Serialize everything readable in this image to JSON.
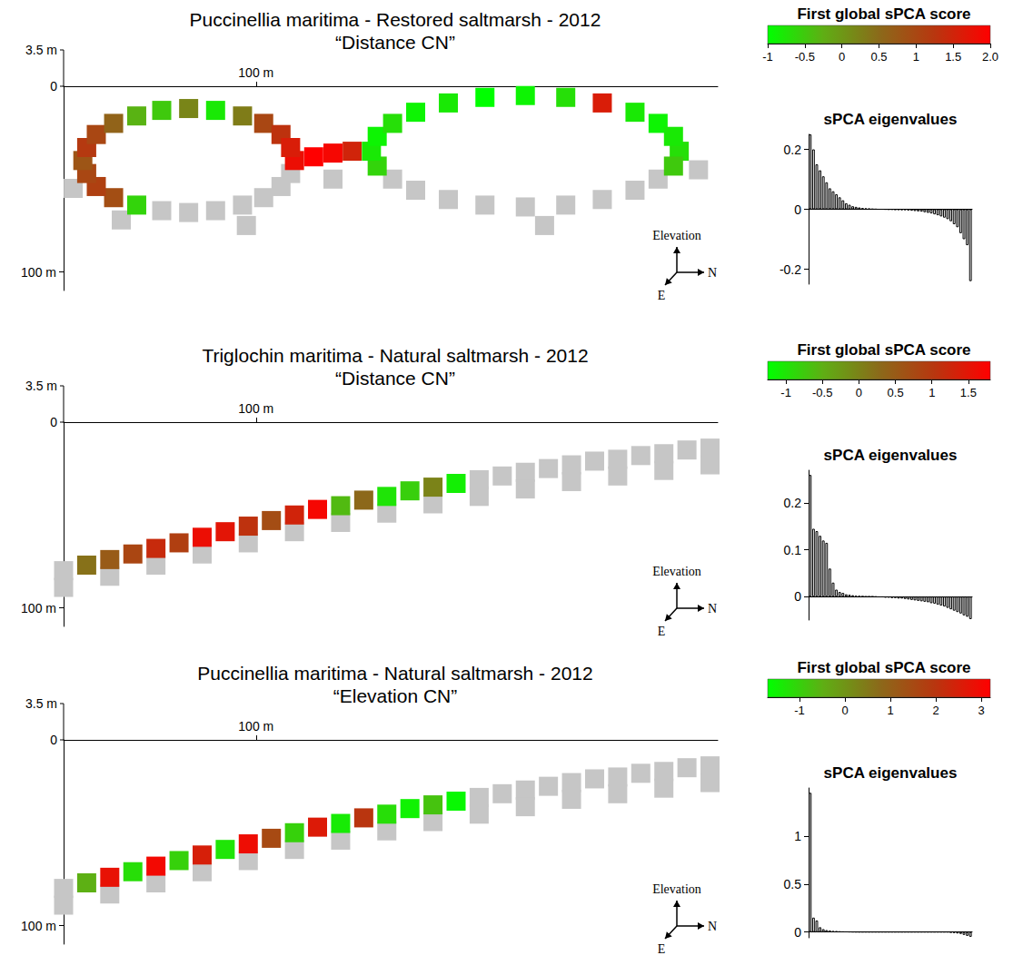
{
  "chart_data": [
    {
      "type": "map",
      "title": "Puccinellia maritima - Restored saltmarsh - 2012",
      "subtitle": "“Distance CN”",
      "map": {
        "xlim": [
          0,
          340
        ],
        "xticks": [
          {
            "value": 100,
            "label": "100 m"
          }
        ],
        "ylim": [
          0,
          110
        ],
        "yticks": [
          {
            "value": 100,
            "label": "100 m"
          }
        ],
        "elevation_lim": [
          0,
          3.5
        ],
        "elevation_ticks": [
          0,
          {
            "value": 3.5,
            "label": "3.5 m"
          }
        ],
        "compass": [
          "Elevation",
          "N",
          "E"
        ],
        "cells": [
          [
            120,
            40,
            1.8
          ],
          [
            118,
            47,
            null
          ],
          [
            113,
            54,
            null
          ],
          [
            104,
            60,
            null
          ],
          [
            93,
            64,
            null
          ],
          [
            79,
            67,
            null
          ],
          [
            65,
            68,
            null
          ],
          [
            51,
            67,
            null
          ],
          [
            38,
            64,
            -0.6
          ],
          [
            26,
            60,
            0.9
          ],
          [
            17,
            54,
            1.1
          ],
          [
            12,
            47,
            1.0
          ],
          [
            10,
            40,
            0.8
          ],
          [
            12,
            33,
            1.2
          ],
          [
            17,
            26,
            1.0
          ],
          [
            26,
            20,
            0.6
          ],
          [
            38,
            16,
            -0.3
          ],
          [
            51,
            13,
            -0.5
          ],
          [
            65,
            12,
            0.2
          ],
          [
            79,
            13,
            -0.8
          ],
          [
            93,
            16,
            0.3
          ],
          [
            104,
            20,
            1.0
          ],
          [
            113,
            26,
            1.3
          ],
          [
            118,
            33,
            1.6
          ],
          [
            130,
            38,
            2.0
          ],
          [
            140,
            36,
            1.9
          ],
          [
            150,
            35,
            1.5
          ],
          [
            320,
            35,
            -0.7
          ],
          [
            317,
            43,
            -0.5
          ],
          [
            309,
            50,
            null
          ],
          [
            297,
            56,
            null
          ],
          [
            280,
            61,
            null
          ],
          [
            261,
            64,
            null
          ],
          [
            240,
            65,
            null
          ],
          [
            219,
            64,
            null
          ],
          [
            200,
            61,
            null
          ],
          [
            183,
            56,
            null
          ],
          [
            171,
            50,
            null
          ],
          [
            163,
            43,
            -0.6
          ],
          [
            160,
            35,
            -0.8
          ],
          [
            163,
            27,
            -0.9
          ],
          [
            171,
            20,
            -0.7
          ],
          [
            183,
            14,
            -0.9
          ],
          [
            200,
            9,
            -0.8
          ],
          [
            219,
            6,
            -1.0
          ],
          [
            240,
            5,
            -0.9
          ],
          [
            261,
            6,
            -0.7
          ],
          [
            280,
            9,
            1.6
          ],
          [
            297,
            14,
            -0.8
          ],
          [
            309,
            20,
            -0.9
          ],
          [
            317,
            27,
            -0.8
          ],
          [
            5,
            55,
            null
          ],
          [
            30,
            72,
            null
          ],
          [
            95,
            75,
            null
          ],
          [
            140,
            50,
            null
          ],
          [
            330,
            45,
            null
          ],
          [
            250,
            75,
            null
          ]
        ]
      },
      "color_bar": {
        "title": "First global sPCA score",
        "range": [
          -1,
          2
        ],
        "ticks": [
          -1,
          -0.5,
          0,
          0.5,
          1,
          1.5,
          {
            "value": 2,
            "label": "2.0"
          }
        ]
      },
      "eigenvalues": {
        "type": "bar",
        "title": "sPCA eigenvalues",
        "color": "#000000",
        "tick_labels": "y",
        "categories": [
          null,
          null,
          null,
          null,
          null,
          null,
          null,
          null,
          null,
          null,
          null,
          null,
          null,
          null,
          null,
          null,
          null,
          null,
          null,
          null,
          null,
          null,
          null,
          null,
          null,
          null,
          null,
          null,
          null,
          null,
          null,
          null,
          null,
          null,
          null,
          null,
          null,
          null,
          null,
          null,
          null,
          null,
          null,
          null,
          null,
          null,
          null,
          null,
          null,
          null
        ],
        "values": [
          0.25,
          0.2,
          0.15,
          0.13,
          0.11,
          0.09,
          0.07,
          0.06,
          0.05,
          0.04,
          0.03,
          0.02,
          0.015,
          0.01,
          0.008,
          0.006,
          0.004,
          0.003,
          0.002,
          0.001,
          0.0005,
          0,
          0,
          -0.0005,
          -0.001,
          -0.001,
          -0.002,
          -0.002,
          -0.003,
          -0.003,
          -0.004,
          -0.005,
          -0.006,
          -0.007,
          -0.008,
          -0.01,
          -0.012,
          -0.014,
          -0.017,
          -0.02,
          -0.024,
          -0.028,
          -0.033,
          -0.04,
          -0.05,
          -0.06,
          -0.08,
          -0.1,
          -0.12,
          -0.24
        ],
        "ylim": [
          -0.25,
          0.25
        ],
        "yticks": [
          -0.2,
          0,
          0.2
        ]
      }
    },
    {
      "type": "map",
      "title": "Triglochin maritima - Natural saltmarsh - 2012",
      "subtitle": "“Distance CN”",
      "map": {
        "xlim": [
          0,
          340
        ],
        "xticks": [
          {
            "value": 100,
            "label": "100 m"
          }
        ],
        "ylim": [
          0,
          110
        ],
        "yticks": [
          {
            "value": 100,
            "label": "100 m"
          }
        ],
        "elevation_lim": [
          0,
          3.5
        ],
        "elevation_ticks": [
          0,
          {
            "value": 3.5,
            "label": "3.5 m"
          }
        ],
        "compass": [
          "Elevation",
          "N",
          "E"
        ],
        "cells": [
          [
            0,
            80,
            null
          ],
          [
            12,
            77,
            0.2
          ],
          [
            24,
            74,
            0.5
          ],
          [
            36,
            71,
            0.8
          ],
          [
            48,
            68,
            1.2
          ],
          [
            60,
            65,
            0.9
          ],
          [
            72,
            62,
            1.6
          ],
          [
            84,
            59,
            1.5
          ],
          [
            96,
            56,
            1.1
          ],
          [
            108,
            53,
            0.7
          ],
          [
            120,
            50,
            1.3
          ],
          [
            132,
            47,
            1.7
          ],
          [
            144,
            45,
            -0.6
          ],
          [
            156,
            42,
            0.3
          ],
          [
            168,
            40,
            -1.0
          ],
          [
            180,
            37,
            -0.8
          ],
          [
            192,
            35,
            0
          ],
          [
            204,
            33,
            -1.1
          ],
          [
            216,
            31,
            null
          ],
          [
            228,
            29,
            null
          ],
          [
            240,
            27,
            null
          ],
          [
            252,
            25,
            null
          ],
          [
            264,
            23,
            null
          ],
          [
            276,
            21,
            null
          ],
          [
            288,
            20,
            null
          ],
          [
            300,
            18,
            null
          ],
          [
            312,
            17,
            null
          ],
          [
            324,
            15,
            null
          ],
          [
            336,
            14,
            null
          ],
          [
            0,
            89,
            null
          ],
          [
            24,
            83,
            null
          ],
          [
            48,
            77,
            null
          ],
          [
            72,
            71,
            null
          ],
          [
            96,
            65,
            null
          ],
          [
            120,
            59,
            null
          ],
          [
            144,
            54,
            null
          ],
          [
            168,
            49,
            null
          ],
          [
            192,
            44,
            null
          ],
          [
            216,
            40,
            null
          ],
          [
            240,
            36,
            null
          ],
          [
            264,
            32,
            null
          ],
          [
            288,
            29,
            null
          ],
          [
            312,
            26,
            null
          ],
          [
            336,
            23,
            null
          ]
        ]
      },
      "color_bar": {
        "title": "First global sPCA score",
        "range": [
          -1.25,
          1.8
        ],
        "ticks": [
          -1,
          -0.5,
          0,
          0.5,
          1,
          1.5
        ]
      },
      "eigenvalues": {
        "type": "bar",
        "title": "sPCA eigenvalues",
        "color": "#000000",
        "tick_labels": "y",
        "categories": [
          null,
          null,
          null,
          null,
          null,
          null,
          null,
          null,
          null,
          null,
          null,
          null,
          null,
          null,
          null,
          null,
          null,
          null,
          null,
          null,
          null,
          null,
          null,
          null,
          null,
          null,
          null,
          null,
          null,
          null,
          null,
          null,
          null,
          null,
          null,
          null,
          null,
          null,
          null,
          null,
          null,
          null,
          null,
          null,
          null,
          null,
          null,
          null,
          null,
          null
        ],
        "values": [
          0.26,
          0.145,
          0.14,
          0.13,
          0.12,
          0.115,
          0.06,
          0.03,
          0.015,
          0.01,
          0.008,
          0.005,
          0.004,
          0.003,
          0.002,
          0.001,
          0.0005,
          0,
          0,
          0,
          -0.0005,
          -0.001,
          -0.001,
          -0.002,
          -0.002,
          -0.003,
          -0.003,
          -0.004,
          -0.004,
          -0.005,
          -0.006,
          -0.007,
          -0.008,
          -0.009,
          -0.01,
          -0.011,
          -0.012,
          -0.014,
          -0.015,
          -0.017,
          -0.019,
          -0.021,
          -0.024,
          -0.027,
          -0.03,
          -0.033,
          -0.036,
          -0.04,
          -0.043,
          -0.048
        ],
        "ylim": [
          -0.05,
          0.27
        ],
        "yticks": [
          0,
          0.1,
          0.2
        ]
      }
    },
    {
      "type": "map",
      "title": "Puccinellia maritima - Natural saltmarsh - 2012",
      "subtitle": "“Elevation CN”",
      "map": {
        "xlim": [
          0,
          340
        ],
        "xticks": [
          {
            "value": 100,
            "label": "100 m"
          }
        ],
        "ylim": [
          0,
          110
        ],
        "yticks": [
          {
            "value": 100,
            "label": "100 m"
          }
        ],
        "elevation_lim": [
          0,
          3.5
        ],
        "elevation_ticks": [
          0,
          {
            "value": 3.5,
            "label": "3.5 m"
          }
        ],
        "compass": [
          "Elevation",
          "N",
          "E"
        ],
        "cells": [
          [
            0,
            80,
            null
          ],
          [
            12,
            77,
            -0.5
          ],
          [
            24,
            74,
            2.8
          ],
          [
            36,
            71,
            -1.2
          ],
          [
            48,
            68,
            3.0
          ],
          [
            60,
            65,
            -1.0
          ],
          [
            72,
            62,
            2.5
          ],
          [
            84,
            59,
            -1.3
          ],
          [
            96,
            56,
            2.9
          ],
          [
            108,
            53,
            1.5
          ],
          [
            120,
            50,
            -1.0
          ],
          [
            132,
            47,
            2.6
          ],
          [
            144,
            45,
            -1.4
          ],
          [
            156,
            42,
            2.0
          ],
          [
            168,
            40,
            -1.2
          ],
          [
            180,
            37,
            -1.5
          ],
          [
            192,
            35,
            -0.8
          ],
          [
            204,
            33,
            -1.6
          ],
          [
            216,
            31,
            null
          ],
          [
            228,
            29,
            null
          ],
          [
            240,
            27,
            null
          ],
          [
            252,
            25,
            null
          ],
          [
            264,
            23,
            null
          ],
          [
            276,
            21,
            null
          ],
          [
            288,
            20,
            null
          ],
          [
            300,
            18,
            null
          ],
          [
            312,
            17,
            null
          ],
          [
            324,
            15,
            null
          ],
          [
            336,
            14,
            null
          ],
          [
            0,
            89,
            null
          ],
          [
            24,
            83,
            null
          ],
          [
            48,
            77,
            null
          ],
          [
            72,
            71,
            null
          ],
          [
            96,
            65,
            null
          ],
          [
            120,
            59,
            null
          ],
          [
            144,
            54,
            null
          ],
          [
            168,
            49,
            null
          ],
          [
            192,
            44,
            null
          ],
          [
            216,
            40,
            null
          ],
          [
            240,
            36,
            null
          ],
          [
            264,
            32,
            null
          ],
          [
            288,
            29,
            null
          ],
          [
            312,
            26,
            null
          ],
          [
            336,
            23,
            null
          ]
        ]
      },
      "color_bar": {
        "title": "First global sPCA score",
        "range": [
          -1.7,
          3.2
        ],
        "ticks": [
          -1,
          0,
          1,
          2,
          3
        ]
      },
      "eigenvalues": {
        "type": "bar",
        "title": "sPCA eigenvalues",
        "color": "#000000",
        "tick_labels": "y",
        "categories": [
          null,
          null,
          null,
          null,
          null,
          null,
          null,
          null,
          null,
          null,
          null,
          null,
          null,
          null,
          null,
          null,
          null,
          null,
          null,
          null,
          null,
          null,
          null,
          null,
          null,
          null,
          null,
          null,
          null,
          null,
          null,
          null,
          null,
          null,
          null,
          null,
          null,
          null,
          null,
          null,
          null,
          null,
          null,
          null,
          null,
          null,
          null,
          null,
          null,
          null
        ],
        "values": [
          1.45,
          0.15,
          0.12,
          0.05,
          0.03,
          0.02,
          0.015,
          0.01,
          0.008,
          0.005,
          0.004,
          0.003,
          0.002,
          0.001,
          0.0005,
          0,
          0,
          0,
          0,
          0,
          0,
          0,
          0,
          0,
          0,
          0,
          0,
          0,
          0,
          0,
          0,
          0,
          0,
          0,
          0,
          0,
          0,
          0,
          0,
          0,
          0,
          0,
          0,
          -0.005,
          -0.01,
          -0.015,
          -0.02,
          -0.03,
          -0.04,
          -0.05
        ],
        "ylim": [
          -0.06,
          1.5
        ],
        "yticks": [
          0,
          0.5,
          1
        ]
      }
    }
  ]
}
